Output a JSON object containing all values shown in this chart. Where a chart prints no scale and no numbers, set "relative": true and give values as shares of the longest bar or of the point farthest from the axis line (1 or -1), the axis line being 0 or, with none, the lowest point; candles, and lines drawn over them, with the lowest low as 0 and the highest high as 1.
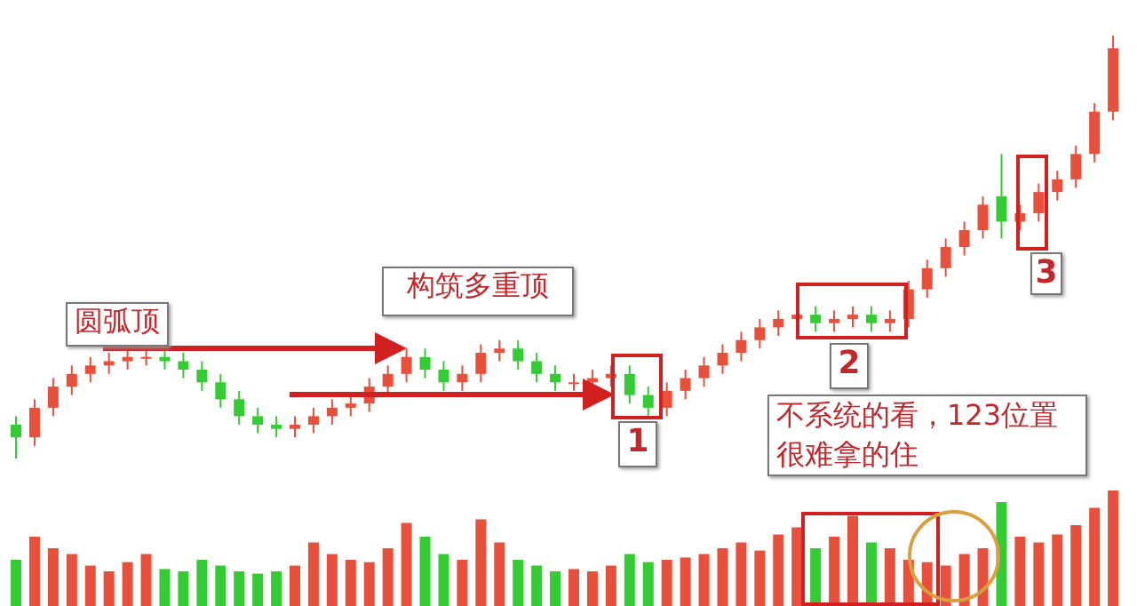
{
  "chart_data": [
    {
      "type": "candlestick",
      "relative": true,
      "categories": [
        null,
        null,
        null,
        null,
        null,
        null,
        null,
        null,
        null,
        null,
        null,
        null,
        null,
        null,
        null,
        null,
        null,
        null,
        null,
        null,
        null,
        null,
        null,
        null,
        null,
        null,
        null,
        null,
        null,
        null,
        null,
        null,
        null,
        null,
        null,
        null,
        null,
        null,
        null,
        null,
        null,
        null,
        null,
        null,
        null,
        null,
        null,
        null,
        null,
        null,
        null,
        null,
        null,
        null,
        null,
        null,
        null,
        null,
        null,
        null
      ],
      "ohlc": [
        [
          0.08,
          0.1,
          0.0,
          0.05
        ],
        [
          0.05,
          0.14,
          0.03,
          0.12
        ],
        [
          0.12,
          0.19,
          0.1,
          0.17
        ],
        [
          0.17,
          0.22,
          0.15,
          0.2
        ],
        [
          0.2,
          0.24,
          0.18,
          0.22
        ],
        [
          0.22,
          0.25,
          0.2,
          0.23
        ],
        [
          0.23,
          0.26,
          0.21,
          0.24
        ],
        [
          0.24,
          0.26,
          0.22,
          0.24
        ],
        [
          0.24,
          0.26,
          0.21,
          0.23
        ],
        [
          0.23,
          0.25,
          0.19,
          0.21
        ],
        [
          0.21,
          0.23,
          0.16,
          0.18
        ],
        [
          0.18,
          0.2,
          0.12,
          0.14
        ],
        [
          0.14,
          0.16,
          0.08,
          0.1
        ],
        [
          0.1,
          0.12,
          0.06,
          0.08
        ],
        [
          0.08,
          0.1,
          0.05,
          0.07
        ],
        [
          0.07,
          0.1,
          0.05,
          0.08
        ],
        [
          0.08,
          0.12,
          0.06,
          0.1
        ],
        [
          0.1,
          0.14,
          0.08,
          0.12
        ],
        [
          0.12,
          0.15,
          0.1,
          0.13
        ],
        [
          0.13,
          0.19,
          0.11,
          0.17
        ],
        [
          0.17,
          0.22,
          0.15,
          0.2
        ],
        [
          0.2,
          0.26,
          0.18,
          0.24
        ],
        [
          0.24,
          0.26,
          0.19,
          0.21
        ],
        [
          0.21,
          0.23,
          0.16,
          0.18
        ],
        [
          0.18,
          0.22,
          0.16,
          0.2
        ],
        [
          0.2,
          0.27,
          0.18,
          0.25
        ],
        [
          0.25,
          0.28,
          0.23,
          0.26
        ],
        [
          0.26,
          0.28,
          0.21,
          0.23
        ],
        [
          0.23,
          0.25,
          0.18,
          0.2
        ],
        [
          0.2,
          0.22,
          0.16,
          0.18
        ],
        [
          0.18,
          0.2,
          0.16,
          0.18
        ],
        [
          0.18,
          0.21,
          0.16,
          0.19
        ],
        [
          0.19,
          0.22,
          0.17,
          0.2
        ],
        [
          0.2,
          0.22,
          0.13,
          0.15
        ],
        [
          0.15,
          0.17,
          0.1,
          0.12
        ],
        [
          0.12,
          0.18,
          0.1,
          0.16
        ],
        [
          0.16,
          0.21,
          0.14,
          0.19
        ],
        [
          0.19,
          0.24,
          0.17,
          0.22
        ],
        [
          0.22,
          0.27,
          0.2,
          0.25
        ],
        [
          0.25,
          0.3,
          0.23,
          0.28
        ],
        [
          0.28,
          0.33,
          0.26,
          0.31
        ],
        [
          0.31,
          0.35,
          0.29,
          0.33
        ],
        [
          0.33,
          0.36,
          0.31,
          0.34
        ],
        [
          0.34,
          0.36,
          0.3,
          0.32
        ],
        [
          0.32,
          0.35,
          0.3,
          0.33
        ],
        [
          0.33,
          0.36,
          0.31,
          0.34
        ],
        [
          0.34,
          0.36,
          0.3,
          0.32
        ],
        [
          0.32,
          0.35,
          0.3,
          0.33
        ],
        [
          0.33,
          0.42,
          0.31,
          0.4
        ],
        [
          0.4,
          0.47,
          0.38,
          0.45
        ],
        [
          0.45,
          0.52,
          0.43,
          0.5
        ],
        [
          0.5,
          0.56,
          0.48,
          0.54
        ],
        [
          0.54,
          0.62,
          0.52,
          0.6
        ],
        [
          0.62,
          0.72,
          0.52,
          0.56
        ],
        [
          0.56,
          0.6,
          0.54,
          0.58
        ],
        [
          0.58,
          0.65,
          0.56,
          0.63
        ],
        [
          0.63,
          0.68,
          0.61,
          0.66
        ],
        [
          0.66,
          0.74,
          0.64,
          0.72
        ],
        [
          0.72,
          0.84,
          0.7,
          0.82
        ],
        [
          0.82,
          1.0,
          0.8,
          0.97
        ]
      ],
      "colors": [
        "#33cc33",
        "#e8503c",
        "#e8503c",
        "#e8503c",
        "#e8503c",
        "#e8503c",
        "#e8503c",
        "#e8503c",
        "#33cc33",
        "#33cc33",
        "#33cc33",
        "#33cc33",
        "#33cc33",
        "#33cc33",
        "#33cc33",
        "#e8503c",
        "#e8503c",
        "#e8503c",
        "#e8503c",
        "#e8503c",
        "#e8503c",
        "#e8503c",
        "#33cc33",
        "#33cc33",
        "#e8503c",
        "#e8503c",
        "#e8503c",
        "#33cc33",
        "#33cc33",
        "#33cc33",
        "#e8503c",
        "#e8503c",
        "#e8503c",
        "#33cc33",
        "#33cc33",
        "#e8503c",
        "#e8503c",
        "#e8503c",
        "#e8503c",
        "#e8503c",
        "#e8503c",
        "#e8503c",
        "#e8503c",
        "#33cc33",
        "#e8503c",
        "#e8503c",
        "#33cc33",
        "#e8503c",
        "#e8503c",
        "#e8503c",
        "#e8503c",
        "#e8503c",
        "#e8503c",
        "#33cc33",
        "#e8503c",
        "#e8503c",
        "#e8503c",
        "#e8503c",
        "#e8503c",
        "#e8503c"
      ],
      "annotations": [
        "圆弧顶",
        "构筑多重顶",
        "1",
        "2",
        "3",
        "不系统的看，123位置很难拿的住"
      ]
    },
    {
      "type": "bar",
      "relative": true,
      "categories": [
        null,
        null,
        null,
        null,
        null,
        null,
        null,
        null,
        null,
        null,
        null,
        null,
        null,
        null,
        null,
        null,
        null,
        null,
        null,
        null,
        null,
        null,
        null,
        null,
        null,
        null,
        null,
        null,
        null,
        null,
        null,
        null,
        null,
        null,
        null,
        null,
        null,
        null,
        null,
        null,
        null,
        null,
        null,
        null,
        null,
        null,
        null,
        null,
        null,
        null,
        null,
        null,
        null,
        null,
        null,
        null,
        null,
        null,
        null,
        null
      ],
      "values": [
        0.4,
        0.6,
        0.5,
        0.45,
        0.35,
        0.3,
        0.38,
        0.45,
        0.32,
        0.3,
        0.4,
        0.35,
        0.3,
        0.28,
        0.3,
        0.35,
        0.55,
        0.45,
        0.4,
        0.38,
        0.5,
        0.72,
        0.6,
        0.45,
        0.4,
        0.75,
        0.55,
        0.4,
        0.35,
        0.3,
        0.32,
        0.3,
        0.35,
        0.45,
        0.38,
        0.4,
        0.42,
        0.45,
        0.5,
        0.55,
        0.48,
        0.62,
        0.68,
        0.5,
        0.6,
        0.78,
        0.55,
        0.5,
        0.4,
        0.38,
        0.35,
        0.45,
        0.5,
        0.9,
        0.6,
        0.55,
        0.62,
        0.7,
        0.85,
        1.0
      ],
      "colors": [
        "#33cc33",
        "#e8503c",
        "#e8503c",
        "#e8503c",
        "#e8503c",
        "#e8503c",
        "#e8503c",
        "#e8503c",
        "#33cc33",
        "#33cc33",
        "#33cc33",
        "#33cc33",
        "#33cc33",
        "#33cc33",
        "#33cc33",
        "#e8503c",
        "#e8503c",
        "#e8503c",
        "#e8503c",
        "#e8503c",
        "#e8503c",
        "#e8503c",
        "#33cc33",
        "#33cc33",
        "#e8503c",
        "#e8503c",
        "#e8503c",
        "#33cc33",
        "#33cc33",
        "#33cc33",
        "#e8503c",
        "#e8503c",
        "#e8503c",
        "#33cc33",
        "#33cc33",
        "#e8503c",
        "#e8503c",
        "#e8503c",
        "#e8503c",
        "#e8503c",
        "#e8503c",
        "#e8503c",
        "#e8503c",
        "#33cc33",
        "#e8503c",
        "#e8503c",
        "#33cc33",
        "#e8503c",
        "#e8503c",
        "#e8503c",
        "#e8503c",
        "#e8503c",
        "#e8503c",
        "#33cc33",
        "#e8503c",
        "#e8503c",
        "#e8503c",
        "#e8503c",
        "#e8503c",
        "#e8503c"
      ]
    }
  ]
}
